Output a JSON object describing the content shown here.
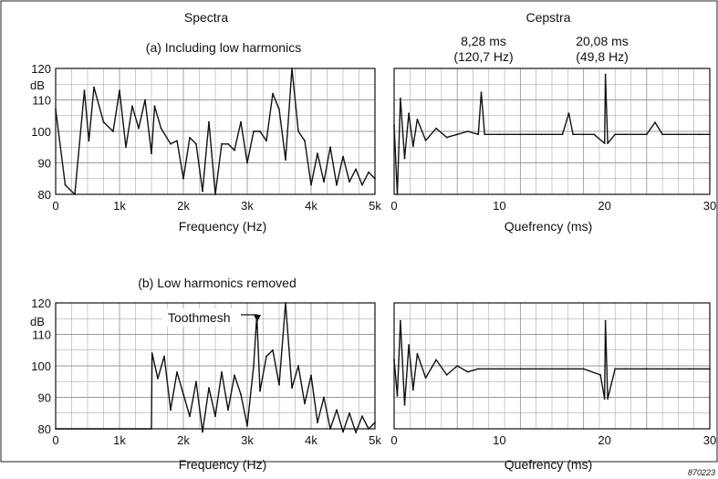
{
  "figure": {
    "spectra_heading": "Spectra",
    "cepstra_heading": "Cepstra",
    "row_a_title": "(a) Including low harmonics",
    "row_b_title": "(b) Low harmonics removed",
    "peak_1_line1": "8,28 ms",
    "peak_1_line2": "(120,7 Hz)",
    "peak_2_line1": "20,08 ms",
    "peak_2_line2": "(49,8 Hz)",
    "toothmesh_label": "Toothmesh",
    "figure_id": "870223",
    "spectrum_xlabel": "Frequency (Hz)",
    "cepstrum_xlabel": "Quefrency (ms)",
    "db_unit": "dB"
  },
  "chart_data": [
    {
      "type": "line",
      "panel": "spectrum-a",
      "xlabel": "Frequency (Hz)",
      "ylabel": "dB",
      "xlim": [
        0,
        5000
      ],
      "ylim": [
        80,
        120
      ],
      "x_tick_labels": [
        "0",
        "1k",
        "2k",
        "3k",
        "4k",
        "5k"
      ],
      "y_tick_labels": [
        "80",
        "90",
        "100",
        "110",
        "120"
      ],
      "grid": true,
      "x": [
        0,
        150,
        300,
        450,
        520,
        600,
        750,
        900,
        1000,
        1100,
        1200,
        1300,
        1400,
        1500,
        1550,
        1650,
        1800,
        1900,
        2000,
        2100,
        2200,
        2300,
        2400,
        2500,
        2600,
        2700,
        2800,
        2900,
        3000,
        3100,
        3200,
        3300,
        3400,
        3500,
        3600,
        3700,
        3800,
        3900,
        4000,
        4100,
        4200,
        4300,
        4400,
        4500,
        4600,
        4700,
        4800,
        4900,
        5000
      ],
      "values": [
        107,
        83,
        80,
        113,
        97,
        114,
        103,
        100,
        113,
        95,
        108,
        101,
        110,
        93,
        108,
        101,
        96,
        97,
        85,
        98,
        96,
        81,
        103,
        80,
        96,
        96,
        94,
        103,
        90,
        100,
        100,
        97,
        112,
        107,
        91,
        120,
        100,
        97,
        83,
        93,
        84,
        95,
        83,
        92,
        84,
        88,
        83,
        87,
        85
      ]
    },
    {
      "type": "line",
      "panel": "cepstrum-a",
      "xlabel": "Quefrency (ms)",
      "xlim": [
        0,
        30
      ],
      "x_tick_labels": [
        "0",
        "10",
        "20",
        "30"
      ],
      "grid": true,
      "x": [
        0,
        0.3,
        0.6,
        1.0,
        1.4,
        1.8,
        2.2,
        3,
        4,
        5,
        6,
        7,
        8,
        8.28,
        8.6,
        10,
        12,
        14,
        16,
        16.6,
        17,
        18,
        19,
        20,
        20.08,
        20.3,
        21,
        22,
        24,
        24.8,
        25.5,
        27,
        29,
        30
      ],
      "values": [
        103,
        80,
        112,
        92,
        107,
        96,
        105,
        98,
        102,
        99,
        100,
        101,
        100,
        114,
        100,
        100,
        100,
        100,
        100,
        107,
        100,
        100,
        100,
        97,
        120,
        97,
        100,
        100,
        100,
        104,
        100,
        100,
        100,
        100
      ]
    },
    {
      "type": "line",
      "panel": "spectrum-b",
      "xlabel": "Frequency (Hz)",
      "ylabel": "dB",
      "xlim": [
        0,
        5000
      ],
      "ylim": [
        80,
        120
      ],
      "x_tick_labels": [
        "0",
        "1k",
        "2k",
        "3k",
        "4k",
        "5k"
      ],
      "y_tick_labels": [
        "80",
        "90",
        "100",
        "110",
        "120"
      ],
      "grid": true,
      "x": [
        0,
        1500,
        1510,
        1600,
        1700,
        1800,
        1900,
        2000,
        2100,
        2200,
        2300,
        2400,
        2500,
        2600,
        2700,
        2800,
        2900,
        3000,
        3100,
        3150,
        3200,
        3300,
        3400,
        3500,
        3600,
        3700,
        3800,
        3900,
        4000,
        4100,
        4200,
        4300,
        4400,
        4500,
        4600,
        4700,
        4800,
        4900,
        5000
      ],
      "values": [
        80,
        80,
        104,
        96,
        103,
        86,
        98,
        91,
        84,
        95,
        79,
        93,
        84,
        98,
        86,
        97,
        91,
        81,
        100,
        116,
        92,
        103,
        105,
        94,
        120,
        93,
        100,
        88,
        97,
        82,
        90,
        80,
        86,
        79,
        85,
        78,
        84,
        80,
        82
      ]
    },
    {
      "type": "line",
      "panel": "cepstrum-b",
      "xlabel": "Quefrency (ms)",
      "xlim": [
        0,
        30
      ],
      "x_tick_labels": [
        "0",
        "10",
        "20",
        "30"
      ],
      "grid": true,
      "x": [
        0,
        0.3,
        0.6,
        1.0,
        1.4,
        1.8,
        2.2,
        3,
        4,
        5,
        6,
        7,
        8,
        10,
        12,
        14,
        16,
        18,
        19.6,
        20,
        20.08,
        20.3,
        21,
        22,
        24,
        26,
        28,
        30
      ],
      "values": [
        103,
        91,
        116,
        88,
        108,
        93,
        105,
        97,
        103,
        98,
        101,
        99,
        100,
        100,
        100,
        100,
        100,
        100,
        98,
        90,
        116,
        90,
        100,
        100,
        100,
        100,
        100,
        100
      ]
    }
  ]
}
